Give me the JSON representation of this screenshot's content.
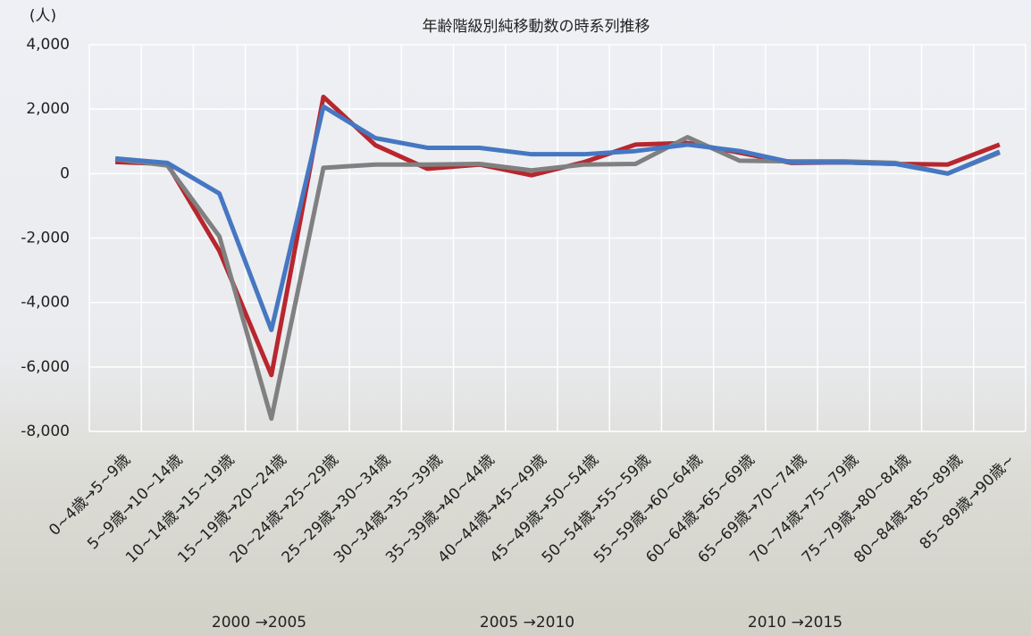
{
  "chart_data": {
    "type": "line",
    "title": "年齢階級別純移動数の時系列推移",
    "y_label": "(人)",
    "categories": [
      "0~4歳→5~9歳",
      "5~9歳→10~14歳",
      "10~14歳→15~19歳",
      "15~19歳→20~24歳",
      "20~24歳→25~29歳",
      "25~29歳→30~34歳",
      "30~34歳→35~39歳",
      "35~39歳→40~44歳",
      "40~44歳→45~49歳",
      "45~49歳→50~54歳",
      "50~54歳→55~59歳",
      "55~59歳→60~64歳",
      "60~64歳→65~69歳",
      "65~69歳→70~74歳",
      "70~74歳→75~79歳",
      "75~79歳→80~84歳",
      "80~84歳→85~89歳",
      "85~89歳→90歳~"
    ],
    "series": [
      {
        "name": "2000 →2005",
        "color": "#b8262e",
        "values": [
          360,
          300,
          -2400,
          -6250,
          2380,
          880,
          150,
          280,
          -50,
          350,
          900,
          950,
          650,
          330,
          350,
          300,
          280,
          900
        ]
      },
      {
        "name": "2005 →2010",
        "color": "#808080",
        "values": [
          450,
          250,
          -1950,
          -7600,
          180,
          280,
          280,
          300,
          100,
          280,
          300,
          1130,
          400,
          380,
          380,
          330,
          0,
          650
        ]
      },
      {
        "name": "2010 →2015",
        "color": "#4677c2",
        "values": [
          470,
          330,
          -620,
          -4850,
          2080,
          1100,
          800,
          800,
          600,
          600,
          700,
          900,
          700,
          350,
          350,
          300,
          0,
          680
        ]
      }
    ],
    "ylim": [
      -8000,
      4000
    ],
    "yticks": [
      {
        "value": -8000,
        "label": "-8,000"
      },
      {
        "value": -6000,
        "label": "-6,000"
      },
      {
        "value": -4000,
        "label": "-4,000"
      },
      {
        "value": -2000,
        "label": "-2,000"
      },
      0,
      {
        "value": 2000,
        "label": "2,000"
      },
      {
        "value": 4000,
        "label": "4,000"
      }
    ],
    "grid": true
  }
}
